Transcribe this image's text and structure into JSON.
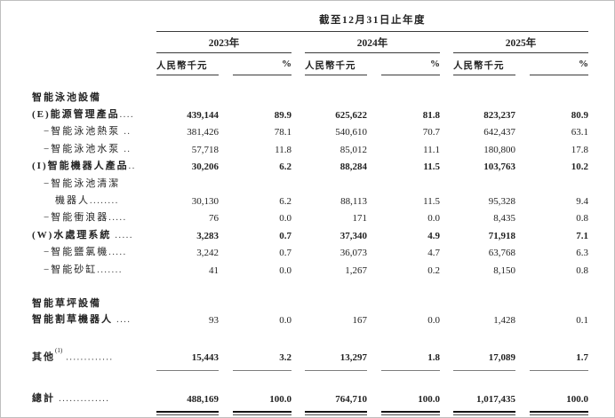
{
  "table": {
    "period_header": "截至12月31日止年度",
    "year_groups": [
      {
        "year": "2023年",
        "amount_header": "人民幣千元",
        "percent_header": "%"
      },
      {
        "year": "2024年",
        "amount_header": "人民幣千元",
        "percent_header": "%"
      },
      {
        "year": "2025年",
        "amount_header": "人民幣千元",
        "percent_header": "%"
      }
    ],
    "rows": [
      {
        "kind": "section",
        "label": "智能泳池設備"
      },
      {
        "kind": "item",
        "bold": true,
        "label": "(E)能源管理產品",
        "dots": "....",
        "v": [
          "439,144",
          "89.9",
          "625,622",
          "81.8",
          "823,237",
          "80.9"
        ]
      },
      {
        "kind": "sub",
        "label": "−智能泳池熱泵",
        "dots": " ..",
        "v": [
          "381,426",
          "78.1",
          "540,610",
          "70.7",
          "642,437",
          "63.1"
        ]
      },
      {
        "kind": "sub",
        "label": "−智能泳池水泵",
        "dots": " ..",
        "v": [
          "57,718",
          "11.8",
          "85,012",
          "11.1",
          "180,800",
          "17.8"
        ]
      },
      {
        "kind": "item",
        "bold": true,
        "label": "(I)智能機器人產品",
        "dots": "..",
        "v": [
          "30,206",
          "6.2",
          "88,284",
          "11.5",
          "103,763",
          "10.2"
        ]
      },
      {
        "kind": "sub",
        "label": "−智能泳池清潔",
        "label2": "機器人",
        "dots": "........",
        "v": [
          "30,130",
          "6.2",
          "88,113",
          "11.5",
          "95,328",
          "9.4"
        ]
      },
      {
        "kind": "sub",
        "label": "−智能衝浪器",
        "dots": ".....",
        "v": [
          "76",
          "0.0",
          "171",
          "0.0",
          "8,435",
          "0.8"
        ]
      },
      {
        "kind": "item",
        "bold": true,
        "label": "(W)水處理系統",
        "dots": " .....",
        "v": [
          "3,283",
          "0.7",
          "37,340",
          "4.9",
          "71,918",
          "7.1"
        ]
      },
      {
        "kind": "sub",
        "label": "−智能鹽氯機",
        "dots": ".....",
        "v": [
          "3,242",
          "0.7",
          "36,073",
          "4.7",
          "63,768",
          "6.3"
        ]
      },
      {
        "kind": "sub",
        "label": "−智能砂缸",
        "dots": ".......",
        "v": [
          "41",
          "0.0",
          "1,267",
          "0.2",
          "8,150",
          "0.8"
        ]
      },
      {
        "kind": "section",
        "label": "智能草坪設備"
      },
      {
        "kind": "item",
        "bold_label": true,
        "label": "智能割草機器人",
        "dots": " ....",
        "v": [
          "93",
          "0.0",
          "167",
          "0.0",
          "1,428",
          "0.1"
        ]
      },
      {
        "kind": "other",
        "bold": true,
        "label": "其他",
        "sup": "(1)",
        "dots": " .............",
        "rule": "single",
        "v": [
          "15,443",
          "3.2",
          "13,297",
          "1.8",
          "17,089",
          "1.7"
        ]
      },
      {
        "kind": "total",
        "bold": true,
        "label": "總計",
        "dots": " ..............",
        "rule": "double",
        "v": [
          "488,169",
          "100.0",
          "764,710",
          "100.0",
          "1,017,435",
          "100.0"
        ]
      }
    ]
  }
}
